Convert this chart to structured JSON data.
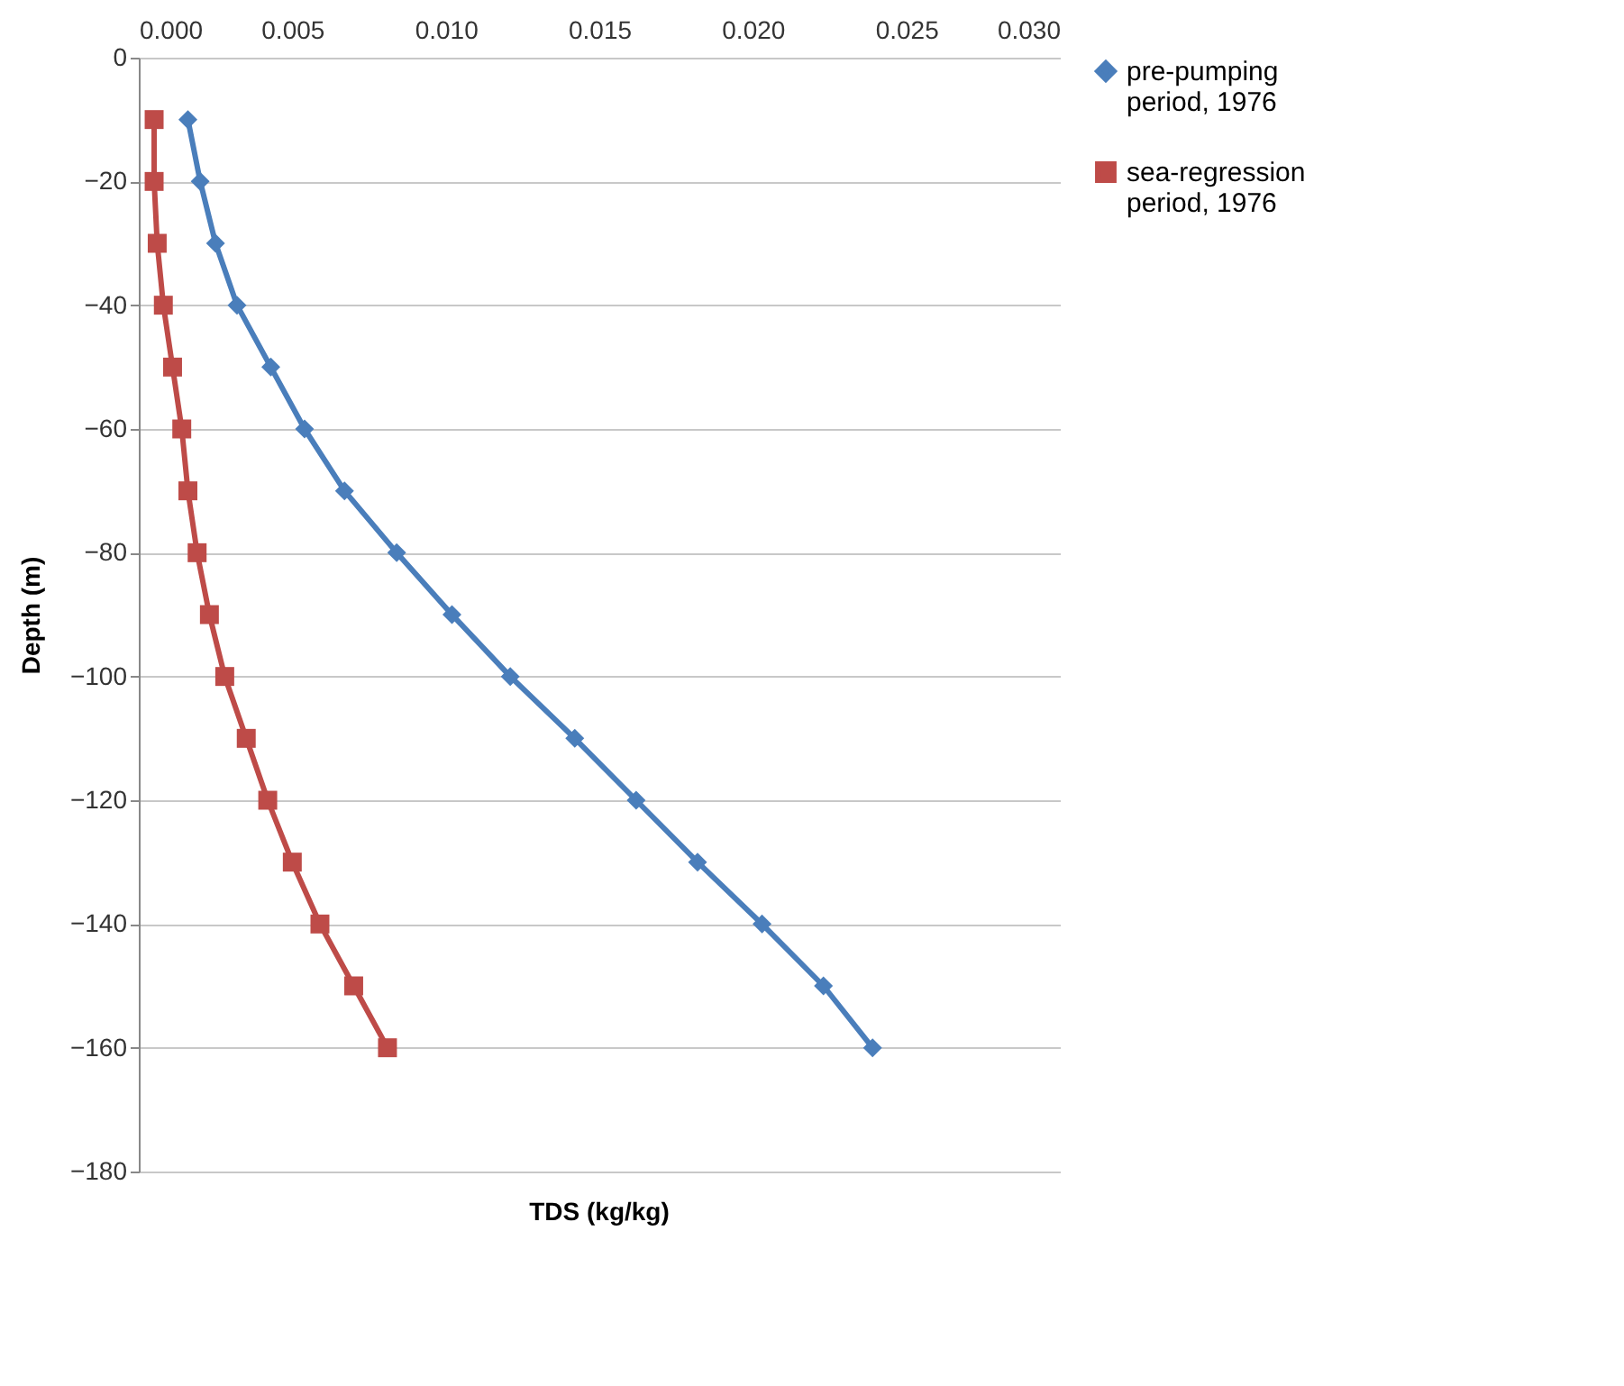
{
  "chart_data": {
    "type": "line",
    "xlabel": "TDS (kg/kg)",
    "ylabel": "Depth (m)",
    "series": [
      {
        "name": "pre-pumping period, 1976",
        "color": "#4a7ebb",
        "marker": "diamond",
        "x": [
          0.0016,
          0.002,
          0.0025,
          0.0032,
          0.0043,
          0.0054,
          0.0067,
          0.0084,
          0.0102,
          0.0121,
          0.0142,
          0.0162,
          0.0182,
          0.0203,
          0.0223,
          0.0239
        ],
        "values": [
          -10,
          -20,
          -30,
          -40,
          -50,
          -60,
          -70,
          -80,
          -90,
          -100,
          -110,
          -120,
          -130,
          -140,
          -150,
          -160
        ]
      },
      {
        "name": "sea-regression period, 1976",
        "color": "#be4b48",
        "marker": "square",
        "x": [
          0.0005,
          0.0005,
          0.0006,
          0.0008,
          0.0011,
          0.0014,
          0.0016,
          0.0019,
          0.0023,
          0.0028,
          0.0035,
          0.0042,
          0.005,
          0.0059,
          0.007,
          0.0081
        ],
        "values": [
          -10,
          -20,
          -30,
          -40,
          -50,
          -60,
          -70,
          -80,
          -90,
          -100,
          -110,
          -120,
          -130,
          -140,
          -150,
          -160
        ]
      }
    ],
    "xlim": [
      0,
      0.03
    ],
    "xticks": [
      {
        "value": 0,
        "label": "0.000"
      },
      {
        "value": 0.005,
        "label": "0.005"
      },
      {
        "value": 0.01,
        "label": "0.010"
      },
      {
        "value": 0.015,
        "label": "0.015"
      },
      {
        "value": 0.02,
        "label": "0.020"
      },
      {
        "value": 0.025,
        "label": "0.025"
      },
      {
        "value": 0.03,
        "label": "0.030"
      }
    ],
    "ylim": [
      -180,
      0
    ],
    "yticks": [
      -180,
      -160,
      -140,
      -120,
      -100,
      -80,
      -60,
      -40,
      -20,
      0
    ],
    "grid": "y",
    "legend": "right",
    "line_style": "solid"
  }
}
